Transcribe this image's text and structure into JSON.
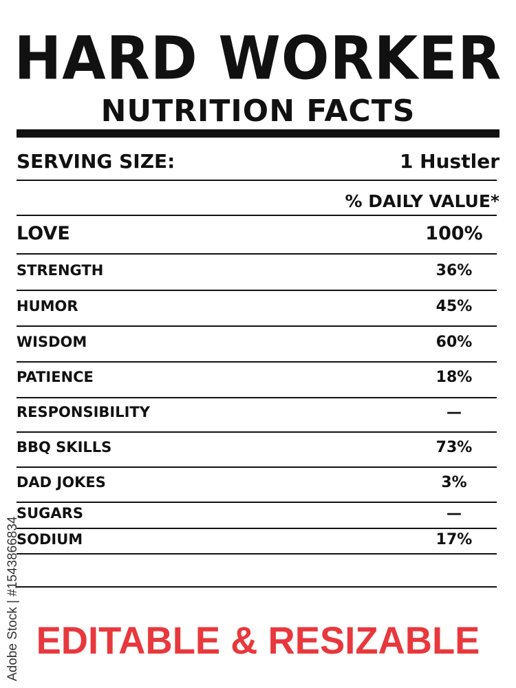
{
  "title": "HARD WORKER",
  "subtitle": "NUTRITION FACTS",
  "serving": {
    "label": "SERVING SIZE:",
    "value": "1 Hustler"
  },
  "daily_value_header": "% DAILY VALUE*",
  "rows": [
    {
      "label": "LOVE",
      "value": "100%"
    },
    {
      "label": "STRENGTH",
      "value": "36%"
    },
    {
      "label": "HUMOR",
      "value": "45%"
    },
    {
      "label": "WISDOM",
      "value": "60%"
    },
    {
      "label": "PATIENCE",
      "value": "18%"
    },
    {
      "label": "RESPONSIBILITY",
      "value": "—"
    },
    {
      "label": "BBQ SKILLS",
      "value": "73%"
    },
    {
      "label": "DAD JOKES",
      "value": "3%"
    },
    {
      "label": "SUGARS",
      "value": "—"
    },
    {
      "label": "SODIUM",
      "value": "17%"
    }
  ],
  "footer": "EDITABLE & RESIZABLE",
  "watermark": "Adobe Stock | #1543866834",
  "colors": {
    "text": "#111111",
    "accent": "#e8383d"
  }
}
